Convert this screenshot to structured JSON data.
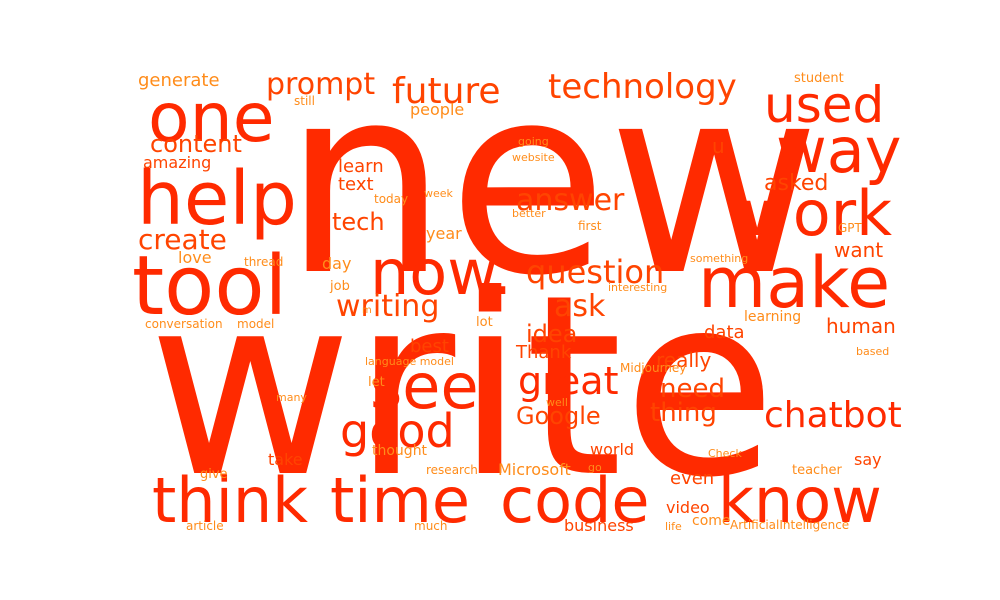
{
  "colors": {
    "primary": "#ff2a00",
    "secondary": "#ff4400",
    "tertiary": "#ff8c1a"
  },
  "words": {
    "new": "new",
    "write": "write",
    "tool": "tool",
    "help": "help",
    "one": "one",
    "now": "now.",
    "make": "make",
    "work": "work",
    "way": "way",
    "used": "used",
    "think": "think",
    "time": "time",
    "code": "code",
    "know": "know",
    "see": "see",
    "good": "good",
    "great": "great",
    "chatbot": "chatbot",
    "future": "future",
    "technology": "technology",
    "prompt": "prompt",
    "question": "question",
    "answer": "answer",
    "writing": "writing",
    "create": "create",
    "content": "content",
    "tech": "tech",
    "ask": "ask",
    "google": "Google",
    "idea": "idea",
    "need": "need",
    "thing": "thing",
    "human": "human",
    "asked": "asked",
    "want": "want",
    "data": "data",
    "really": "really",
    "thank": "Thank",
    "best": "best",
    "text": "text",
    "learn": "learn",
    "amazing": "amazing",
    "generate": "generate",
    "people": "people",
    "u": "u",
    "even": "even",
    "video": "video",
    "business": "business",
    "world": "world",
    "take": "take",
    "say": "say",
    "day": "day",
    "year": "year",
    "love": "love",
    "microsoft": "Microsoft",
    "come": "come",
    "thought": "thought",
    "learning": "learning",
    "student": "student",
    "still": "still",
    "going": "going",
    "website": "website",
    "today": "today",
    "week": "week",
    "better": "better",
    "first": "first",
    "gpt": "GPT",
    "thread": "thread",
    "job": "job",
    "something": "something",
    "interesting": "interesting",
    "lot": "lot",
    "conversation": "conversation",
    "model": "model",
    "m": "m",
    "language_model": "language model",
    "midjourney": "Midjourney",
    "let": "let",
    "well": "well",
    "based": "based",
    "many": "many",
    "check": "Check",
    "give": "give",
    "research": "research",
    "go": "go",
    "teacher": "teacher",
    "article": "article",
    "much": "much",
    "life": "life",
    "artificial_intelligence": "ArtificialIntelligence"
  }
}
